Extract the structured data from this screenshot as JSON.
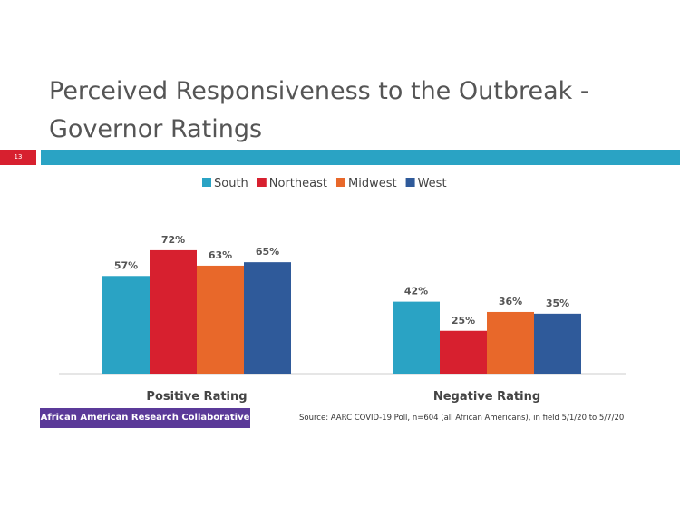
{
  "slide": {
    "title_line1": "Perceived Responsiveness to the Outbreak -",
    "title_line2": "Governor Ratings",
    "number": "13",
    "org_label": "African American Research Collaborative",
    "source": "Source: AARC COVID-19 Poll, n=604 (all African Americans), in field 5/1/20 to 5/7/20"
  },
  "chart_data": {
    "type": "bar",
    "categories": [
      "Positive Rating",
      "Negative Rating"
    ],
    "series": [
      {
        "name": "South",
        "color": "#2aa3c4",
        "values": [
          57,
          42
        ]
      },
      {
        "name": "Northeast",
        "color": "#d7202f",
        "values": [
          72,
          25
        ]
      },
      {
        "name": "Midwest",
        "color": "#e8682a",
        "values": [
          63,
          36
        ]
      },
      {
        "name": "West",
        "color": "#2f5a9a",
        "values": [
          65,
          35
        ]
      }
    ],
    "value_suffix": "%",
    "legend": "top",
    "ylim": [
      0,
      100
    ]
  }
}
